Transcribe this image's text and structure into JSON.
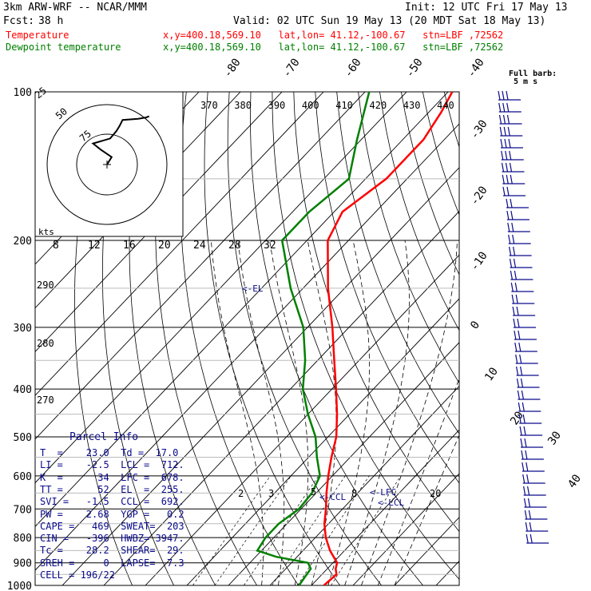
{
  "header": {
    "model": "3km ARW-WRF -- NCAR/MMM",
    "init": "Init: 12 UTC Fri 17 May 13",
    "fcst_label": "Fcst:",
    "fcst_value": "38 h",
    "valid": "Valid: 02 UTC Sun 19 May 13 (20 MDT Sat 18 May 13)",
    "temp_label": "Temperature",
    "temp_info": "x,y=400.18,569.10   lat,lon= 41.12,-100.67   stn=LBF ,72562",
    "dew_label": "Dewpoint temperature",
    "dew_info": "x,y=400.18,569.10   lat,lon= 41.12,-100.67   stn=LBF ,72562"
  },
  "colors": {
    "temperature": "#ff0000",
    "dewpoint": "#008000",
    "info": "#0a0a8c",
    "barbs": "#0a0a8c"
  },
  "chart_data": {
    "type": "line",
    "pressure_ticks": [
      "100",
      "200",
      "300",
      "400",
      "500",
      "600",
      "700",
      "800",
      "900",
      "1000"
    ],
    "isotherm_labels": [
      "-80",
      "-70",
      "-60",
      "-50",
      "-40",
      "-30",
      "-20",
      "-10",
      "0",
      "10",
      "20",
      "30",
      "40"
    ],
    "theta_labels": [
      "370",
      "380",
      "390",
      "400",
      "410",
      "420",
      "430",
      "440"
    ],
    "theta_left_labels": [
      "290",
      "280",
      "270"
    ],
    "mixing_ratio_labels": [
      "2",
      "3",
      "5",
      "8",
      "20"
    ],
    "inset_speed_labels": [
      "8",
      "12",
      "16",
      "20",
      "24",
      "28",
      "32"
    ],
    "inset_units": "kts",
    "hodograph_ring_labels": [
      "75",
      "50",
      "25"
    ],
    "barb_legend_title": "Full barb:",
    "barb_legend_units": "5 m s",
    "annotations": {
      "el": "<-EL",
      "lfc": "<-LFC",
      "lcl": "<-LCL",
      "ccl": "<-CCL"
    },
    "series": [
      {
        "name": "Temperature",
        "points": [
          [
            1000,
            23.0
          ],
          [
            950,
            23.5
          ],
          [
            925,
            22.0
          ],
          [
            900,
            21.0
          ],
          [
            850,
            16.5
          ],
          [
            800,
            12.5
          ],
          [
            750,
            9.0
          ],
          [
            700,
            6.0
          ],
          [
            650,
            2.5
          ],
          [
            600,
            -1.0
          ],
          [
            550,
            -4.5
          ],
          [
            500,
            -8.0
          ],
          [
            450,
            -13.0
          ],
          [
            400,
            -19.0
          ],
          [
            350,
            -26.0
          ],
          [
            300,
            -34.0
          ],
          [
            250,
            -44.0
          ],
          [
            200,
            -55.0
          ],
          [
            175,
            -58.0
          ],
          [
            150,
            -55.0
          ],
          [
            125,
            -55.0
          ],
          [
            110,
            -57.0
          ],
          [
            100,
            -59.0
          ]
        ]
      },
      {
        "name": "Dewpoint temperature",
        "points": [
          [
            1000,
            17.0
          ],
          [
            925,
            16.0
          ],
          [
            900,
            14.0
          ],
          [
            875,
            5.0
          ],
          [
            850,
            -1.0
          ],
          [
            800,
            -2.0
          ],
          [
            750,
            -2.0
          ],
          [
            700,
            -0.5
          ],
          [
            650,
            -1.0
          ],
          [
            600,
            -3.0
          ],
          [
            550,
            -8.0
          ],
          [
            500,
            -13.0
          ],
          [
            450,
            -20.0
          ],
          [
            400,
            -27.0
          ],
          [
            350,
            -33.0
          ],
          [
            300,
            -41.0
          ],
          [
            250,
            -53.0
          ],
          [
            200,
            -66.0
          ],
          [
            175,
            -66.0
          ],
          [
            150,
            -64.0
          ],
          [
            125,
            -71.0
          ],
          [
            100,
            -79.0
          ]
        ]
      }
    ],
    "hodograph": [
      [
        0,
        0
      ],
      [
        3,
        6
      ],
      [
        -4,
        12
      ],
      [
        -9,
        17
      ],
      [
        2,
        21
      ],
      [
        6,
        27
      ],
      [
        8,
        31
      ],
      [
        10,
        36
      ],
      [
        20,
        37
      ],
      [
        25,
        38
      ],
      [
        27,
        39
      ]
    ]
  },
  "parcel_info": {
    "title": "Parcel Info",
    "rows": [
      "T  =    23.0  Td =  17.0",
      "LI =    -2.5  LCL =  712.",
      "K  =      34  LFC =  678.",
      "TT =      52  EL  =  255.",
      "SVI =   -1.5  CCL =  692.",
      "PW =    2.68  YGP =   0.2",
      "CAPE =   469  SWEAT=  203",
      "CIN =   -396  HWBZ= 3947.",
      "Tc =    28.2  SHEAR=  29.",
      "SREH =     0  LAPSE=  7.3",
      "CELL = 196/22"
    ]
  }
}
